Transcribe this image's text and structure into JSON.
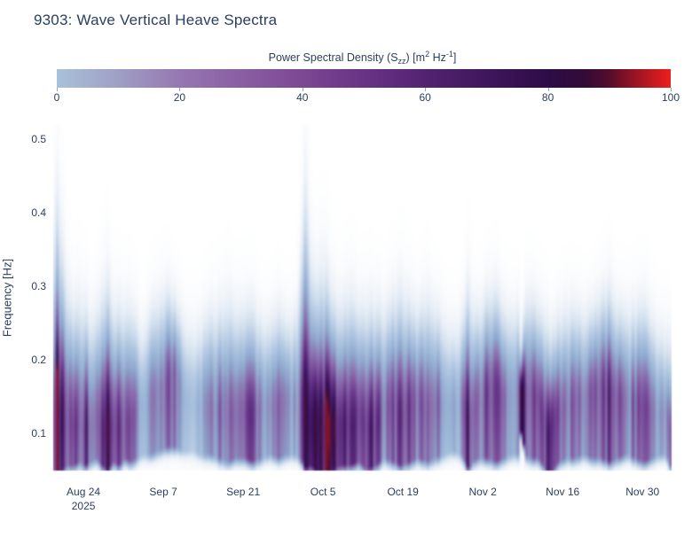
{
  "chart_data": {
    "type": "heatmap",
    "title": "9303: Wave Vertical Heave Spectra",
    "xlabel": "",
    "ylabel": "Frequency [Hz]",
    "ylim": [
      0.05,
      0.52
    ],
    "y_ticks": [
      0.1,
      0.2,
      0.3,
      0.4,
      0.5
    ],
    "x_domain_days": [
      0,
      108.4
    ],
    "x_ticks": [
      {
        "t": 5.3,
        "label": "Aug 24",
        "sublabel": "2025"
      },
      {
        "t": 19.3,
        "label": "Sep 7"
      },
      {
        "t": 33.3,
        "label": "Sep 21"
      },
      {
        "t": 47.3,
        "label": "Oct 5"
      },
      {
        "t": 61.3,
        "label": "Oct 19"
      },
      {
        "t": 75.3,
        "label": "Nov 2"
      },
      {
        "t": 89.3,
        "label": "Nov 16"
      },
      {
        "t": 103.3,
        "label": "Nov 30"
      }
    ],
    "zlim": [
      0,
      100
    ],
    "colorbar": {
      "title_parts": [
        {
          "t": "Power Spectral Density (S"
        },
        {
          "t": "zz",
          "s": "sub"
        },
        {
          "t": ") [m"
        },
        {
          "t": "2",
          "s": "sup"
        },
        {
          "t": " Hz"
        },
        {
          "t": "-1",
          "s": "sup"
        },
        {
          "t": "]"
        }
      ],
      "ticks": [
        0,
        20,
        40,
        60,
        80,
        100
      ],
      "gradient": [
        [
          0,
          "#a8c2da"
        ],
        [
          10,
          "#9f9fc5"
        ],
        [
          20,
          "#9677b2"
        ],
        [
          30,
          "#8a5ea3"
        ],
        [
          40,
          "#7c4894"
        ],
        [
          50,
          "#683384"
        ],
        [
          60,
          "#532371"
        ],
        [
          70,
          "#3f165c"
        ],
        [
          80,
          "#2d0c47"
        ],
        [
          86,
          "#320b38"
        ],
        [
          90,
          "#550d2b"
        ],
        [
          95,
          "#a61522"
        ],
        [
          100,
          "#ee1e1e"
        ]
      ]
    },
    "render_colorscale": [
      [
        0,
        "#ffffff"
      ],
      [
        8,
        "#eaf0f7"
      ],
      [
        16,
        "#cfdded"
      ],
      [
        24,
        "#b3c8e2"
      ],
      [
        32,
        "#9db8d8"
      ],
      [
        40,
        "#8fa3cb"
      ],
      [
        46,
        "#8b89bb"
      ],
      [
        52,
        "#8a6fae"
      ],
      [
        58,
        "#7f57a0"
      ],
      [
        64,
        "#6f4090"
      ],
      [
        70,
        "#5c2c7e"
      ],
      [
        76,
        "#481c69"
      ],
      [
        82,
        "#351055"
      ],
      [
        88,
        "#3a0d3f"
      ],
      [
        92,
        "#5c0e2e"
      ],
      [
        96,
        "#a41523"
      ],
      [
        100,
        "#ef1f1f"
      ]
    ],
    "ambient": {
      "amp": 9,
      "f_center": 0.16,
      "f_width": 0.085
    },
    "columns_format": [
      "day",
      "psd_peak",
      "f_low_hz",
      "f_peak_hz",
      "f_high_hz"
    ],
    "columns": [
      [
        0.0,
        60,
        0.055,
        0.09,
        0.42
      ],
      [
        0.8,
        88,
        0.05,
        0.085,
        0.46
      ],
      [
        1.6,
        72,
        0.055,
        0.1,
        0.4
      ],
      [
        2.6,
        45,
        0.06,
        0.1,
        0.34
      ],
      [
        3.6,
        62,
        0.06,
        0.095,
        0.3
      ],
      [
        4.6,
        48,
        0.065,
        0.1,
        0.32
      ],
      [
        5.6,
        66,
        0.06,
        0.09,
        0.3
      ],
      [
        6.6,
        52,
        0.065,
        0.1,
        0.28
      ],
      [
        7.6,
        38,
        0.07,
        0.11,
        0.3
      ],
      [
        8.6,
        62,
        0.06,
        0.09,
        0.32
      ],
      [
        9.6,
        74,
        0.055,
        0.09,
        0.34
      ],
      [
        10.6,
        48,
        0.065,
        0.1,
        0.3
      ],
      [
        11.6,
        56,
        0.06,
        0.095,
        0.3
      ],
      [
        12.6,
        42,
        0.07,
        0.1,
        0.3
      ],
      [
        13.6,
        52,
        0.065,
        0.1,
        0.3
      ],
      [
        14.6,
        36,
        0.07,
        0.12,
        0.28
      ],
      [
        15.6,
        26,
        0.075,
        0.13,
        0.26
      ],
      [
        17.0,
        32,
        0.075,
        0.14,
        0.3
      ],
      [
        18.6,
        42,
        0.08,
        0.15,
        0.32
      ],
      [
        20.0,
        46,
        0.085,
        0.17,
        0.33
      ],
      [
        21.6,
        42,
        0.085,
        0.18,
        0.31
      ],
      [
        23.0,
        27,
        0.08,
        0.14,
        0.28
      ],
      [
        24.6,
        20,
        0.08,
        0.13,
        0.26
      ],
      [
        26.0,
        30,
        0.075,
        0.13,
        0.28
      ],
      [
        27.6,
        36,
        0.075,
        0.12,
        0.3
      ],
      [
        29.0,
        44,
        0.07,
        0.12,
        0.3
      ],
      [
        30.6,
        50,
        0.065,
        0.115,
        0.32
      ],
      [
        32.0,
        40,
        0.07,
        0.12,
        0.3
      ],
      [
        33.6,
        46,
        0.07,
        0.12,
        0.3
      ],
      [
        35.0,
        54,
        0.065,
        0.115,
        0.3
      ],
      [
        36.6,
        40,
        0.07,
        0.13,
        0.28
      ],
      [
        38.0,
        32,
        0.075,
        0.13,
        0.28
      ],
      [
        39.6,
        42,
        0.07,
        0.13,
        0.3
      ],
      [
        41.0,
        36,
        0.075,
        0.14,
        0.28
      ],
      [
        42.6,
        30,
        0.075,
        0.13,
        0.3
      ],
      [
        43.8,
        58,
        0.065,
        0.11,
        0.44
      ],
      [
        44.3,
        76,
        0.055,
        0.1,
        0.5
      ],
      [
        45.0,
        58,
        0.06,
        0.1,
        0.38
      ],
      [
        46.0,
        68,
        0.055,
        0.095,
        0.34
      ],
      [
        47.6,
        80,
        0.05,
        0.09,
        0.36
      ],
      [
        49.0,
        72,
        0.055,
        0.095,
        0.31
      ],
      [
        50.6,
        58,
        0.06,
        0.1,
        0.3
      ],
      [
        52.0,
        62,
        0.06,
        0.1,
        0.32
      ],
      [
        53.6,
        50,
        0.065,
        0.11,
        0.3
      ],
      [
        55.0,
        64,
        0.055,
        0.095,
        0.3
      ],
      [
        56.6,
        56,
        0.06,
        0.1,
        0.3
      ],
      [
        58.0,
        42,
        0.07,
        0.12,
        0.3
      ],
      [
        59.6,
        52,
        0.065,
        0.13,
        0.32
      ],
      [
        61.0,
        60,
        0.06,
        0.11,
        0.33
      ],
      [
        62.6,
        50,
        0.065,
        0.13,
        0.31
      ],
      [
        64.0,
        42,
        0.07,
        0.14,
        0.3
      ],
      [
        65.6,
        52,
        0.065,
        0.12,
        0.32
      ],
      [
        67.0,
        44,
        0.07,
        0.13,
        0.3
      ],
      [
        68.6,
        32,
        0.075,
        0.13,
        0.28
      ],
      [
        70.0,
        26,
        0.08,
        0.13,
        0.26
      ],
      [
        71.6,
        36,
        0.075,
        0.13,
        0.28
      ],
      [
        72.9,
        70,
        0.055,
        0.1,
        0.34
      ],
      [
        73.5,
        46,
        0.065,
        0.12,
        0.3
      ],
      [
        74.6,
        42,
        0.07,
        0.14,
        0.3
      ],
      [
        76.0,
        50,
        0.07,
        0.15,
        0.32
      ],
      [
        77.6,
        54,
        0.065,
        0.16,
        0.33
      ],
      [
        79.0,
        42,
        0.07,
        0.14,
        0.3
      ],
      [
        80.6,
        36,
        0.075,
        0.15,
        0.3
      ],
      [
        81.6,
        40,
        0.075,
        0.15,
        0.3
      ],
      [
        82.1,
        90,
        0.115,
        0.155,
        0.21
      ],
      [
        82.7,
        46,
        0.075,
        0.15,
        0.31
      ],
      [
        83.6,
        52,
        0.07,
        0.15,
        0.32
      ],
      [
        85.0,
        44,
        0.07,
        0.14,
        0.3
      ],
      [
        86.0,
        52,
        0.06,
        0.11,
        0.28
      ],
      [
        86.6,
        88,
        0.05,
        0.09,
        0.27
      ],
      [
        87.1,
        82,
        0.05,
        0.095,
        0.25
      ],
      [
        87.7,
        62,
        0.055,
        0.11,
        0.26
      ],
      [
        88.6,
        46,
        0.065,
        0.12,
        0.28
      ],
      [
        90.0,
        40,
        0.07,
        0.13,
        0.3
      ],
      [
        91.6,
        46,
        0.07,
        0.14,
        0.3
      ],
      [
        93.0,
        38,
        0.075,
        0.14,
        0.29
      ],
      [
        94.6,
        44,
        0.07,
        0.15,
        0.3
      ],
      [
        96.0,
        50,
        0.07,
        0.16,
        0.32
      ],
      [
        97.6,
        56,
        0.065,
        0.15,
        0.33
      ],
      [
        99.0,
        46,
        0.07,
        0.14,
        0.3
      ],
      [
        100.6,
        40,
        0.075,
        0.14,
        0.3
      ],
      [
        102.0,
        48,
        0.07,
        0.13,
        0.3
      ],
      [
        103.6,
        54,
        0.065,
        0.13,
        0.31
      ],
      [
        105.0,
        42,
        0.07,
        0.12,
        0.28
      ],
      [
        106.5,
        34,
        0.075,
        0.12,
        0.26
      ],
      [
        107.5,
        30,
        0.075,
        0.115,
        0.24
      ],
      [
        108.4,
        56,
        0.055,
        0.085,
        0.22
      ]
    ]
  }
}
